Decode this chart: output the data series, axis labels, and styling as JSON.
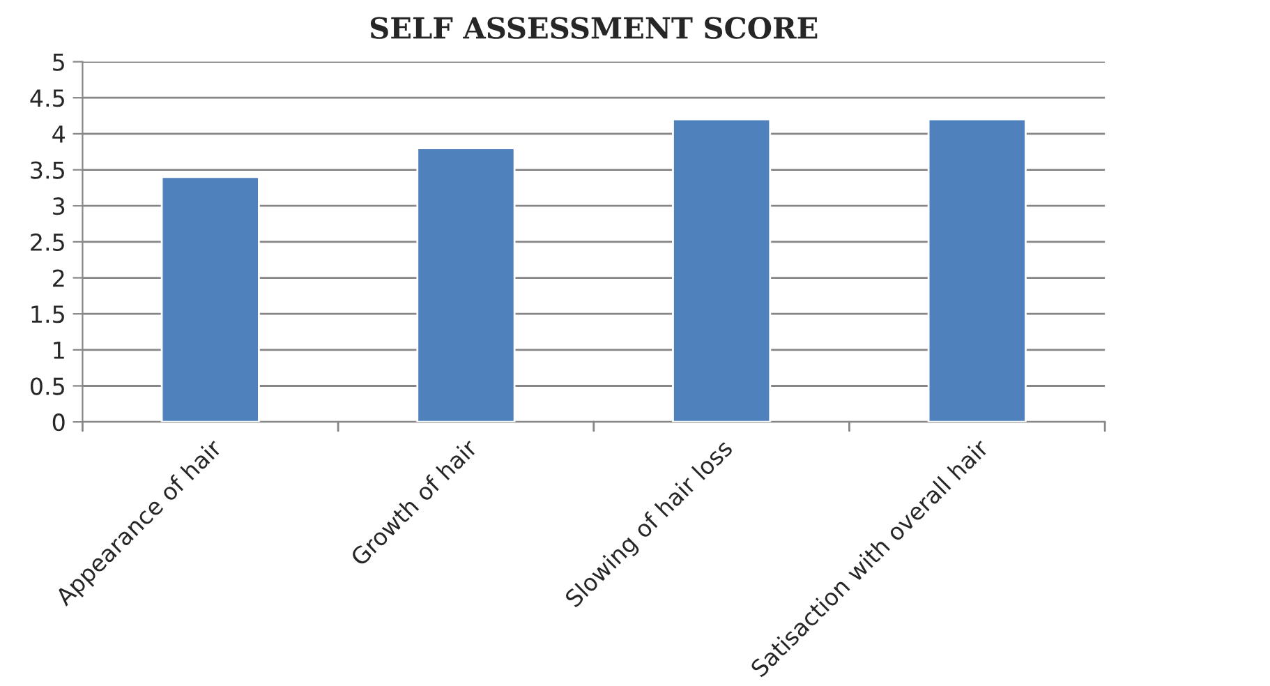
{
  "chart_data": {
    "type": "bar",
    "title": "SELF ASSESSMENT SCORE",
    "categories": [
      "Appearance of hair",
      "Growth of hair",
      "Slowing of hair loss",
      "Satisaction with overall hair"
    ],
    "series": [
      {
        "color": "#4f81bd",
        "values": [
          3.4,
          3.8,
          4.2,
          4.2
        ]
      }
    ],
    "ylim": [
      0,
      5
    ],
    "yticks": [
      0,
      0.5,
      1,
      1.5,
      2,
      2.5,
      3,
      3.5,
      4,
      4.5,
      5
    ],
    "grid": "y"
  }
}
